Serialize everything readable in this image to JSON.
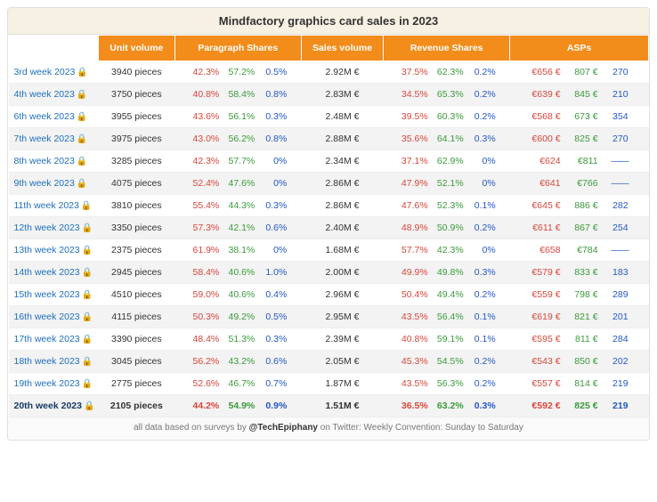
{
  "title": "Mindfactory graphics card sales in 2023",
  "headers": {
    "unit": "Unit volume",
    "pshares": "Paragraph Shares",
    "sales": "Sales volume",
    "rshares": "Revenue Shares",
    "asps": "ASPs"
  },
  "colors": {
    "header_bg": "#f28c1a",
    "red": "#d9453a",
    "green": "#3a9a3a",
    "blue": "#2257c7",
    "link": "#1e6fbf",
    "lock": "#4fa64f"
  },
  "rows": [
    {
      "week": "3rd week 2023",
      "unit": "3940 pieces",
      "ps": [
        "42.3%",
        "57.2%",
        "0.5%"
      ],
      "sales": "2.92M €",
      "rs": [
        "37.5%",
        "62.3%",
        "0.2%"
      ],
      "asp": [
        "€656 €",
        "807 €",
        "270"
      ],
      "bold": false
    },
    {
      "week": "4th week 2023",
      "unit": "3750 pieces",
      "ps": [
        "40.8%",
        "58.4%",
        "0.8%"
      ],
      "sales": "2.83M €",
      "rs": [
        "34.5%",
        "65.3%",
        "0.2%"
      ],
      "asp": [
        "€639 €",
        "845 €",
        "210"
      ],
      "bold": false
    },
    {
      "week": "6th week 2023",
      "unit": "3955 pieces",
      "ps": [
        "43.6%",
        "56.1%",
        "0.3%"
      ],
      "sales": "2.48M €",
      "rs": [
        "39.5%",
        "60.3%",
        "0.2%"
      ],
      "asp": [
        "€568 €",
        "673 €",
        "354"
      ],
      "bold": false
    },
    {
      "week": "7th week 2023",
      "unit": "3975 pieces",
      "ps": [
        "43.0%",
        "56.2%",
        "0.8%"
      ],
      "sales": "2.88M €",
      "rs": [
        "35.6%",
        "64.1%",
        "0.3%"
      ],
      "asp": [
        "€600 €",
        "825 €",
        "270"
      ],
      "bold": false
    },
    {
      "week": "8th week 2023",
      "unit": "3285 pieces",
      "ps": [
        "42.3%",
        "57.7%",
        "0%"
      ],
      "sales": "2.34M €",
      "rs": [
        "37.1%",
        "62.9%",
        "0%"
      ],
      "asp": [
        "€624",
        "€811",
        "——"
      ],
      "bold": false,
      "dash": true
    },
    {
      "week": "9th week 2023",
      "unit": "4075 pieces",
      "ps": [
        "52.4%",
        "47.6%",
        "0%"
      ],
      "sales": "2.86M €",
      "rs": [
        "47.9%",
        "52.1%",
        "0%"
      ],
      "asp": [
        "€641",
        "€766",
        "——"
      ],
      "bold": false,
      "dash": true
    },
    {
      "week": "11th week 2023",
      "unit": "3810 pieces",
      "ps": [
        "55.4%",
        "44.3%",
        "0.3%"
      ],
      "sales": "2.86M €",
      "rs": [
        "47.6%",
        "52.3%",
        "0.1%"
      ],
      "asp": [
        "€645 €",
        "886 €",
        "282"
      ],
      "bold": false
    },
    {
      "week": "12th week 2023",
      "unit": "3350 pieces",
      "ps": [
        "57.3%",
        "42.1%",
        "0.6%"
      ],
      "sales": "2.40M €",
      "rs": [
        "48.9%",
        "50.9%",
        "0.2%"
      ],
      "asp": [
        "€611 €",
        "867 €",
        "254"
      ],
      "bold": false
    },
    {
      "week": "13th week 2023",
      "unit": "2375 pieces",
      "ps": [
        "61.9%",
        "38.1%",
        "0%"
      ],
      "sales": "1.68M €",
      "rs": [
        "57.7%",
        "42.3%",
        "0%"
      ],
      "asp": [
        "€658",
        "€784",
        "——"
      ],
      "bold": false,
      "dash": true
    },
    {
      "week": "14th week 2023",
      "unit": "2945 pieces",
      "ps": [
        "58.4%",
        "40.6%",
        "1.0%"
      ],
      "sales": "2.00M €",
      "rs": [
        "49.9%",
        "49.8%",
        "0.3%"
      ],
      "asp": [
        "€579 €",
        "833 €",
        "183"
      ],
      "bold": false
    },
    {
      "week": "15th week 2023",
      "unit": "4510 pieces",
      "ps": [
        "59.0%",
        "40.6%",
        "0.4%"
      ],
      "sales": "2.96M €",
      "rs": [
        "50.4%",
        "49.4%",
        "0.2%"
      ],
      "asp": [
        "€559 €",
        "798 €",
        "289"
      ],
      "bold": false
    },
    {
      "week": "16th week 2023",
      "unit": "4115 pieces",
      "ps": [
        "50.3%",
        "49.2%",
        "0.5%"
      ],
      "sales": "2.95M €",
      "rs": [
        "43.5%",
        "56.4%",
        "0.1%"
      ],
      "asp": [
        "€619 €",
        "821 €",
        "201"
      ],
      "bold": false
    },
    {
      "week": "17th week 2023",
      "unit": "3390 pieces",
      "ps": [
        "48.4%",
        "51.3%",
        "0.3%"
      ],
      "sales": "2.39M €",
      "rs": [
        "40.8%",
        "59.1%",
        "0.1%"
      ],
      "asp": [
        "€595 €",
        "811 €",
        "284"
      ],
      "bold": false
    },
    {
      "week": "18th week 2023",
      "unit": "3045 pieces",
      "ps": [
        "56.2%",
        "43.2%",
        "0.6%"
      ],
      "sales": "2.05M €",
      "rs": [
        "45.3%",
        "54.5%",
        "0.2%"
      ],
      "asp": [
        "€543 €",
        "850 €",
        "202"
      ],
      "bold": false
    },
    {
      "week": "19th week 2023",
      "unit": "2775 pieces",
      "ps": [
        "52.6%",
        "46.7%",
        "0.7%"
      ],
      "sales": "1.87M €",
      "rs": [
        "43.5%",
        "56.3%",
        "0.2%"
      ],
      "asp": [
        "€557 €",
        "814 €",
        "219"
      ],
      "bold": false
    },
    {
      "week": "20th week 2023",
      "unit": "2105 pieces",
      "ps": [
        "44.2%",
        "54.9%",
        "0.9%"
      ],
      "sales": "1.51M €",
      "rs": [
        "36.5%",
        "63.2%",
        "0.3%"
      ],
      "asp": [
        "€592 €",
        "825 €",
        "219"
      ],
      "bold": true
    }
  ],
  "footer": {
    "pre": "all data based on surveys by ",
    "handle": "@TechEpiphany",
    "post": " on Twitter: Weekly Convention: Sunday to Saturday"
  }
}
